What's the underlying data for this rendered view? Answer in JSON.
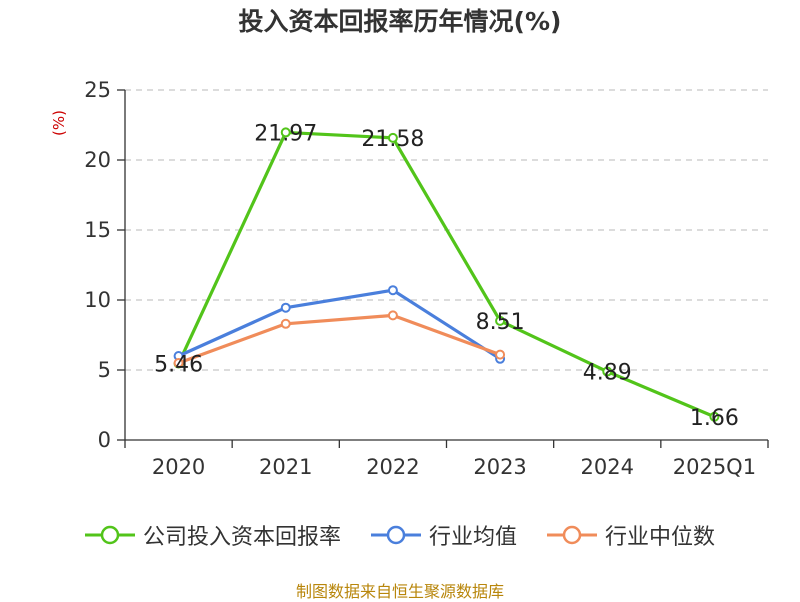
{
  "chart_data": {
    "type": "line",
    "title": "投入资本回报率历年情况(%)",
    "ylabel": "(%)",
    "xlabel": "",
    "categories": [
      "2020",
      "2021",
      "2022",
      "2023",
      "2024",
      "2025Q1"
    ],
    "yticks": [
      "0",
      "5",
      "10",
      "15",
      "20",
      "25"
    ],
    "ylim": [
      0,
      25
    ],
    "grid": "horizontal dashed",
    "legend_position": "bottom",
    "series": [
      {
        "name": "公司投入资本回报率",
        "color": "#52c41a",
        "values": [
          5.46,
          21.97,
          21.58,
          8.51,
          4.89,
          1.66
        ],
        "labels": [
          "5.46",
          "21.97",
          "21.58",
          "8.51",
          "4.89",
          "1.66"
        ]
      },
      {
        "name": "行业均值",
        "color": "#4a7fdc",
        "values": [
          6.0,
          9.45,
          10.7,
          5.8,
          null,
          null
        ]
      },
      {
        "name": "行业中位数",
        "color": "#f08c5a",
        "values": [
          5.5,
          8.3,
          8.9,
          6.1,
          null,
          null
        ]
      }
    ]
  },
  "footer": {
    "source": "制图数据来自恒生聚源数据库"
  }
}
